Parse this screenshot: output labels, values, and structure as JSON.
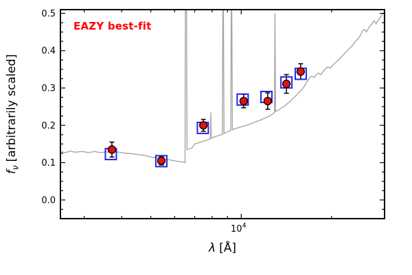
{
  "chart_data": {
    "type": "line+scatter",
    "annotation": "EAZY best-fit",
    "xlabel_symbol": "λ",
    "xlabel_unit": "[Å]",
    "ylabel_f": "f",
    "ylabel_sub": "ν",
    "ylabel_rest": "[arbitrarily scaled]",
    "xscale": "log",
    "xlim": [
      2500,
      30000
    ],
    "ylim": [
      -0.05,
      0.51
    ],
    "yticks": [
      0.0,
      0.1,
      0.2,
      0.3,
      0.4,
      0.5
    ],
    "ytick_labels": [
      "0.0",
      "0.1",
      "0.2",
      "0.3",
      "0.4",
      "0.5"
    ],
    "ytick_minor_step": 0.025,
    "xtick_major": [
      10000
    ],
    "xtick_label": {
      "base": "10",
      "exp": "4"
    },
    "xtick_minor": [
      3000,
      4000,
      5000,
      6000,
      7000,
      8000,
      9000,
      20000,
      30000
    ],
    "colors": {
      "annotation": "#ff0000",
      "spectrum": "#a6a6a6",
      "photometry_fill": "#e31010",
      "photometry_edge": "#000000",
      "model_edge": "#2222ee",
      "errorbar": "#000000",
      "frame": "#000000"
    },
    "series": [
      {
        "name": "EAZY best-fit spectrum",
        "style": "line"
      },
      {
        "name": "Model photometry",
        "style": "open-square"
      },
      {
        "name": "Observed photometry",
        "style": "filled-circle-errorbar"
      }
    ],
    "photometry": {
      "lambda": [
        3710,
        5420,
        7480,
        10190,
        12250,
        14140,
        15770
      ],
      "flux": [
        0.135,
        0.105,
        0.2,
        0.265,
        0.265,
        0.311,
        0.344
      ],
      "err": [
        0.02,
        0.011,
        0.016,
        0.018,
        0.022,
        0.025,
        0.021
      ]
    },
    "model": {
      "lambda": [
        3680,
        5420,
        7450,
        10110,
        12130,
        14140,
        15780
      ],
      "flux": [
        0.123,
        0.104,
        0.193,
        0.269,
        0.276,
        0.315,
        0.338
      ]
    },
    "spectrum": [
      [
        2500,
        0.129
      ],
      [
        2600,
        0.127
      ],
      [
        2700,
        0.131
      ],
      [
        2800,
        0.128
      ],
      [
        2950,
        0.13
      ],
      [
        3100,
        0.127
      ],
      [
        3250,
        0.13
      ],
      [
        3400,
        0.127
      ],
      [
        3550,
        0.129
      ],
      [
        3700,
        0.126
      ],
      [
        3850,
        0.129
      ],
      [
        4000,
        0.127
      ],
      [
        4150,
        0.125
      ],
      [
        4300,
        0.124
      ],
      [
        4500,
        0.122
      ],
      [
        4700,
        0.12
      ],
      [
        4900,
        0.117
      ],
      [
        5100,
        0.114
      ],
      [
        5300,
        0.112
      ],
      [
        5500,
        0.11
      ],
      [
        5700,
        0.108
      ],
      [
        5900,
        0.106
      ],
      [
        6100,
        0.104
      ],
      [
        6300,
        0.102
      ],
      [
        6450,
        0.101
      ],
      [
        6500,
        0.1
      ],
      [
        6520,
        0.7
      ],
      [
        6560,
        0.7
      ],
      [
        6600,
        0.135
      ],
      [
        6700,
        0.137
      ],
      [
        6850,
        0.139
      ],
      [
        7000,
        0.15
      ],
      [
        7200,
        0.153
      ],
      [
        7400,
        0.156
      ],
      [
        7600,
        0.159
      ],
      [
        7800,
        0.162
      ],
      [
        7900,
        0.164
      ],
      [
        7920,
        0.235
      ],
      [
        7950,
        0.166
      ],
      [
        8100,
        0.168
      ],
      [
        8300,
        0.171
      ],
      [
        8500,
        0.174
      ],
      [
        8650,
        0.176
      ],
      [
        8700,
        0.7
      ],
      [
        8760,
        0.178
      ],
      [
        8900,
        0.181
      ],
      [
        9100,
        0.184
      ],
      [
        9230,
        0.186
      ],
      [
        9280,
        0.7
      ],
      [
        9340,
        0.188
      ],
      [
        9500,
        0.19
      ],
      [
        9700,
        0.193
      ],
      [
        10000,
        0.196
      ],
      [
        10300,
        0.199
      ],
      [
        10600,
        0.202
      ],
      [
        10900,
        0.206
      ],
      [
        11200,
        0.21
      ],
      [
        11500,
        0.213
      ],
      [
        11800,
        0.217
      ],
      [
        12100,
        0.221
      ],
      [
        12400,
        0.225
      ],
      [
        12700,
        0.23
      ],
      [
        12900,
        0.234
      ],
      [
        12950,
        0.5
      ],
      [
        13010,
        0.237
      ],
      [
        13300,
        0.241
      ],
      [
        13600,
        0.246
      ],
      [
        13900,
        0.251
      ],
      [
        14200,
        0.257
      ],
      [
        14500,
        0.263
      ],
      [
        14800,
        0.27
      ],
      [
        15100,
        0.277
      ],
      [
        15400,
        0.284
      ],
      [
        15700,
        0.291
      ],
      [
        16000,
        0.298
      ],
      [
        16300,
        0.307
      ],
      [
        16600,
        0.318
      ],
      [
        16900,
        0.328
      ],
      [
        17200,
        0.332
      ],
      [
        17500,
        0.328
      ],
      [
        17800,
        0.336
      ],
      [
        18100,
        0.34
      ],
      [
        18400,
        0.336
      ],
      [
        18700,
        0.343
      ],
      [
        19000,
        0.35
      ],
      [
        19400,
        0.357
      ],
      [
        19800,
        0.353
      ],
      [
        20200,
        0.362
      ],
      [
        20600,
        0.368
      ],
      [
        21000,
        0.374
      ],
      [
        21400,
        0.381
      ],
      [
        21900,
        0.389
      ],
      [
        22400,
        0.398
      ],
      [
        22900,
        0.406
      ],
      [
        23400,
        0.413
      ],
      [
        23900,
        0.423
      ],
      [
        24400,
        0.431
      ],
      [
        24900,
        0.44
      ],
      [
        25300,
        0.452
      ],
      [
        25700,
        0.457
      ],
      [
        26100,
        0.45
      ],
      [
        26500,
        0.46
      ],
      [
        26900,
        0.466
      ],
      [
        27300,
        0.473
      ],
      [
        27700,
        0.48
      ],
      [
        28100,
        0.472
      ],
      [
        28500,
        0.48
      ],
      [
        28900,
        0.487
      ],
      [
        29300,
        0.494
      ],
      [
        29700,
        0.499
      ],
      [
        30000,
        0.503
      ]
    ]
  }
}
